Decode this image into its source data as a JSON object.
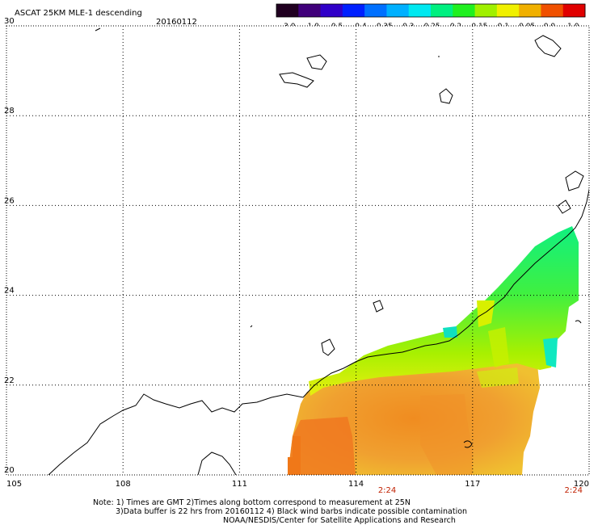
{
  "header": {
    "title": "ASCAT 25KM MLE-1 descending",
    "date": "20160112"
  },
  "colorbar": {
    "labels": [
      "-3.0",
      "-1.0",
      "-0.5",
      "-0.4",
      "-0.35",
      "-0.3",
      "-0.25",
      "-0.2",
      "-0.15",
      "-0.1",
      "-0.05",
      "0.0",
      "1.0"
    ],
    "colors": [
      "#200020",
      "#40007a",
      "#3000c8",
      "#0020ff",
      "#0070ff",
      "#00b0ff",
      "#00e8f0",
      "#00f080",
      "#20f020",
      "#a0f000",
      "#f0f000",
      "#f0b000",
      "#f05000",
      "#e00000"
    ]
  },
  "map": {
    "lon_range": [
      105,
      120
    ],
    "lat_range": [
      20,
      30
    ],
    "lon_ticks": [
      "105",
      "108",
      "111",
      "114",
      "117",
      "120"
    ],
    "lat_ticks": [
      "30",
      "28",
      "26",
      "24",
      "22",
      "20"
    ],
    "pass_times": [
      {
        "label": "2:24",
        "lon": 114.8
      },
      {
        "label": "2:24",
        "lon": 119.6
      }
    ]
  },
  "footer": {
    "line1": "Note: 1) Times are GMT 2)Times along bottom correspond to measurement at 25N",
    "line2": "3)Data buffer is 22 hrs from 20160112 4) Black wind barbs indicate possible contamination",
    "line3": "NOAA/NESDIS/Center for Satellite Applications and Research"
  }
}
